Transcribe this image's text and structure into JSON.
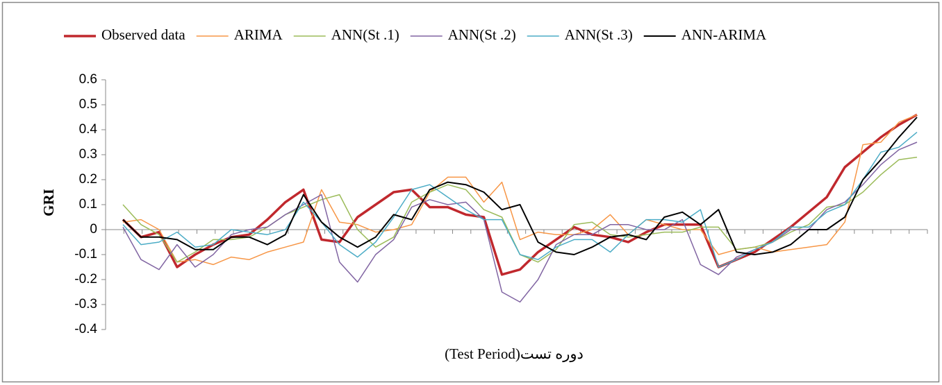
{
  "chart_data": {
    "type": "line",
    "y_label": "GRI",
    "x_label": "(Test Period)دوره تست",
    "categories": [
      null,
      null,
      null,
      null,
      null,
      null,
      null,
      null,
      null,
      null,
      null,
      null,
      null,
      null,
      null,
      null,
      null,
      null,
      null,
      null,
      null,
      null,
      null,
      null,
      null,
      null,
      null,
      null,
      null,
      null,
      null,
      null,
      null,
      null,
      null,
      null,
      null,
      null,
      null,
      null,
      null,
      null,
      null,
      null,
      null
    ],
    "ylim": [
      -0.4,
      0.6
    ],
    "yticks": [
      -0.4,
      -0.3,
      -0.2,
      -0.1,
      0,
      0.1,
      0.2,
      0.3,
      0.4,
      0.5,
      0.6
    ],
    "series": [
      {
        "name": "Observed data",
        "color": "#c0282d",
        "width": 3.5,
        "values": [
          0.04,
          -0.03,
          -0.01,
          -0.15,
          -0.1,
          -0.06,
          -0.03,
          -0.02,
          0.04,
          0.11,
          0.16,
          -0.04,
          -0.05,
          0.05,
          0.1,
          0.15,
          0.16,
          0.09,
          0.09,
          0.06,
          0.05,
          -0.18,
          -0.16,
          -0.09,
          -0.04,
          0.01,
          -0.02,
          -0.03,
          -0.05,
          -0.01,
          0.02,
          0.02,
          0.02,
          -0.15,
          -0.12,
          -0.09,
          -0.04,
          0.01,
          0.07,
          0.13,
          0.25,
          0.31,
          0.37,
          0.42,
          0.46
        ]
      },
      {
        "name": "ARIMA",
        "color": "#f79646",
        "width": 1.5,
        "values": [
          0.03,
          0.04,
          0.0,
          -0.13,
          -0.12,
          -0.14,
          -0.11,
          -0.12,
          -0.09,
          -0.07,
          -0.05,
          0.16,
          0.03,
          0.02,
          -0.01,
          0.0,
          0.02,
          0.15,
          0.21,
          0.21,
          0.11,
          0.19,
          -0.04,
          -0.01,
          -0.02,
          -0.02,
          0.0,
          0.06,
          -0.02,
          0.04,
          0.02,
          0.0,
          0.0,
          -0.1,
          -0.08,
          -0.07,
          -0.09,
          -0.08,
          -0.07,
          -0.06,
          0.03,
          0.34,
          0.35,
          0.43,
          0.46
        ]
      },
      {
        "name": "ANN(St .1)",
        "color": "#9bbb59",
        "width": 1.5,
        "values": [
          0.1,
          0.02,
          -0.02,
          -0.13,
          -0.09,
          -0.04,
          -0.04,
          -0.03,
          0.01,
          0.06,
          0.09,
          0.12,
          0.14,
          0.0,
          -0.07,
          -0.03,
          0.11,
          0.15,
          0.18,
          0.16,
          0.08,
          0.05,
          -0.1,
          -0.13,
          -0.08,
          0.02,
          0.03,
          -0.02,
          -0.03,
          -0.02,
          -0.01,
          -0.01,
          0.01,
          0.01,
          -0.08,
          -0.07,
          -0.05,
          -0.01,
          0.02,
          0.09,
          0.1,
          0.15,
          0.22,
          0.28,
          0.29
        ]
      },
      {
        "name": "ANN(St .2)",
        "color": "#8064a2",
        "width": 1.5,
        "values": [
          0.01,
          -0.12,
          -0.16,
          -0.06,
          -0.15,
          -0.1,
          -0.02,
          0.0,
          0.01,
          0.06,
          0.1,
          0.14,
          -0.13,
          -0.21,
          -0.1,
          -0.04,
          0.09,
          0.12,
          0.1,
          0.11,
          0.04,
          -0.25,
          -0.29,
          -0.2,
          -0.06,
          -0.02,
          -0.02,
          0.02,
          0.02,
          0.0,
          0.0,
          0.04,
          -0.14,
          -0.18,
          -0.11,
          -0.08,
          -0.05,
          0.0,
          0.0,
          0.08,
          0.11,
          0.18,
          0.26,
          0.32,
          0.35
        ]
      },
      {
        "name": "ANN(St .3)",
        "color": "#4bacc6",
        "width": 1.5,
        "values": [
          0.02,
          -0.06,
          -0.05,
          -0.01,
          -0.07,
          -0.06,
          0.0,
          -0.01,
          -0.02,
          0.0,
          0.11,
          0.03,
          -0.06,
          -0.11,
          -0.05,
          0.05,
          0.16,
          0.18,
          0.13,
          0.08,
          0.04,
          0.04,
          -0.1,
          -0.12,
          -0.07,
          -0.04,
          -0.04,
          -0.09,
          -0.02,
          0.04,
          0.04,
          0.03,
          0.08,
          -0.15,
          -0.12,
          -0.08,
          -0.05,
          0.01,
          0.01,
          0.07,
          0.1,
          0.2,
          0.31,
          0.33,
          0.39
        ]
      },
      {
        "name": "ANN-ARIMA",
        "color": "#000000",
        "width": 2,
        "values": [
          0.04,
          -0.03,
          -0.03,
          -0.04,
          -0.08,
          -0.08,
          -0.03,
          -0.03,
          -0.06,
          -0.02,
          0.14,
          0.03,
          -0.03,
          -0.07,
          -0.03,
          0.06,
          0.04,
          0.16,
          0.19,
          0.18,
          0.15,
          0.08,
          0.1,
          -0.05,
          -0.09,
          -0.1,
          -0.07,
          -0.03,
          -0.02,
          -0.04,
          0.05,
          0.07,
          0.02,
          0.08,
          -0.09,
          -0.1,
          -0.09,
          -0.06,
          0.0,
          0.0,
          0.05,
          0.2,
          0.28,
          0.37,
          0.45
        ]
      }
    ]
  }
}
